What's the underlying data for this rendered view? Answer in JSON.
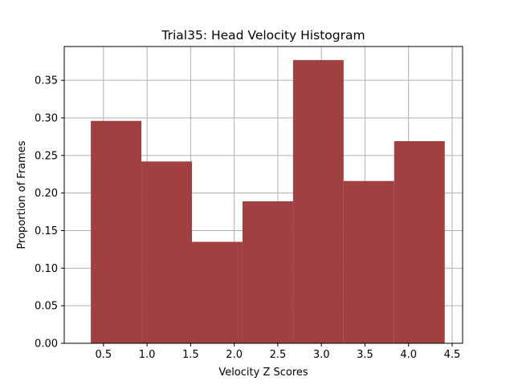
{
  "chart_data": {
    "type": "bar",
    "title": "Trial35: Head Velocity Histogram",
    "xlabel": "Velocity Z Scores",
    "ylabel": "Proportion of Frames",
    "bin_edges": [
      0.355,
      0.935,
      1.515,
      2.095,
      2.675,
      3.255,
      3.835,
      4.415
    ],
    "values": [
      0.296,
      0.242,
      0.135,
      0.189,
      0.377,
      0.216,
      0.269
    ],
    "xlim": [
      0.05,
      4.62
    ],
    "ylim": [
      0.0,
      0.395
    ],
    "xticks": [
      0.5,
      1.0,
      1.5,
      2.0,
      2.5,
      3.0,
      3.5,
      4.0,
      4.5
    ],
    "xtick_labels": [
      "0.5",
      "1.0",
      "1.5",
      "2.0",
      "2.5",
      "3.0",
      "3.5",
      "4.0",
      "4.5"
    ],
    "yticks": [
      0.0,
      0.05,
      0.1,
      0.15,
      0.2,
      0.25,
      0.3,
      0.35
    ],
    "ytick_labels": [
      "0.00",
      "0.05",
      "0.10",
      "0.15",
      "0.20",
      "0.25",
      "0.30",
      "0.35"
    ],
    "grid": true,
    "legend": "none",
    "bar_color": "#a04040",
    "grid_color": "#b0b0b0"
  }
}
